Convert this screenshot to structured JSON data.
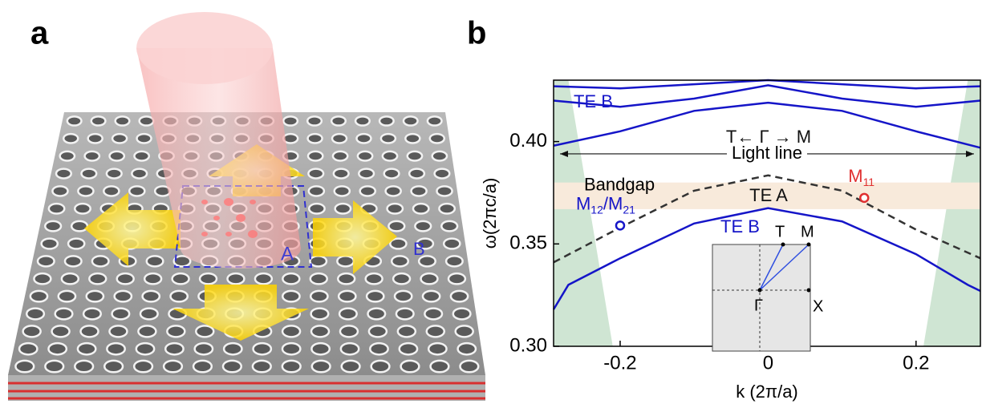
{
  "panels": {
    "a": {
      "label": "a",
      "region_a": "A",
      "region_b": "B"
    }
  },
  "chart_data": {
    "type": "line",
    "label": "b",
    "x_label": "k (2π/a)",
    "y_label": "ω(2πc/a)",
    "xlim": [
      -0.29,
      0.287
    ],
    "ylim": [
      0.3,
      0.43
    ],
    "xticks": [
      -0.2,
      0,
      0.2
    ],
    "yticks": [
      {
        "value": 0.3,
        "label": "0.30"
      },
      {
        "value": 0.35,
        "label": "0.35"
      },
      {
        "value": 0.4,
        "label": "0.40"
      }
    ],
    "series": [
      {
        "color": "#1515c8",
        "dashed": false,
        "x": [
          -0.29,
          -0.27,
          -0.2,
          -0.1,
          0,
          0.1,
          0.2,
          0.27,
          0.287
        ],
        "values": [
          0.318,
          0.33,
          0.343,
          0.36,
          0.3675,
          0.361,
          0.345,
          0.33,
          0.327
        ]
      },
      {
        "color": "#333333",
        "dashed": true,
        "x": [
          -0.29,
          -0.2,
          -0.1,
          0,
          0.1,
          0.2,
          0.287
        ],
        "values": [
          0.341,
          0.358,
          0.376,
          0.3835,
          0.376,
          0.357,
          0.343
        ]
      },
      {
        "color": "#1515c8",
        "dashed": false,
        "x": [
          -0.29,
          -0.2,
          -0.1,
          0,
          0.1,
          0.2,
          0.287
        ],
        "values": [
          0.398,
          0.405,
          0.415,
          0.419,
          0.415,
          0.405,
          0.397
        ]
      },
      {
        "color": "#1515c8",
        "dashed": false,
        "x": [
          -0.29,
          -0.2,
          -0.1,
          0,
          0.1,
          0.2,
          0.287
        ],
        "values": [
          0.42,
          0.417,
          0.421,
          0.4275,
          0.421,
          0.417,
          0.42
        ]
      },
      {
        "color": "#1515c8",
        "dashed": false,
        "x": [
          -0.29,
          -0.2,
          -0.1,
          0,
          0.1,
          0.2,
          0.287
        ],
        "values": [
          0.427,
          0.426,
          0.428,
          0.43,
          0.428,
          0.426,
          0.427
        ]
      }
    ],
    "light_cone": {
      "color": "#cfe5d3",
      "regions": [
        {
          "x": [
            -0.29,
            -0.27,
            -0.21,
            -0.29
          ],
          "values": [
            0.43,
            0.43,
            0.3,
            0.3
          ]
        },
        {
          "x": [
            0.287,
            0.27,
            0.21,
            0.287
          ],
          "values": [
            0.43,
            0.43,
            0.3,
            0.3
          ]
        }
      ]
    },
    "bandgap": {
      "label": "Bandgap",
      "range": [
        0.367,
        0.38
      ],
      "color": "#f8eadb"
    },
    "light_line_label": "Light line",
    "annotations": [
      "TE B",
      "TE B",
      "T← Γ → M",
      "TE A"
    ],
    "points": [
      {
        "x": -0.2,
        "y": 0.359,
        "color": "#1515c8",
        "label": [
          "M",
          "12",
          "/M",
          "21"
        ]
      },
      {
        "x": 0.13,
        "y": 0.3725,
        "color": "#e03030",
        "label": [
          "M",
          "11"
        ]
      }
    ],
    "inset": {
      "gamma": "Γ",
      "x": "X",
      "t": "T",
      "m": "M"
    }
  }
}
